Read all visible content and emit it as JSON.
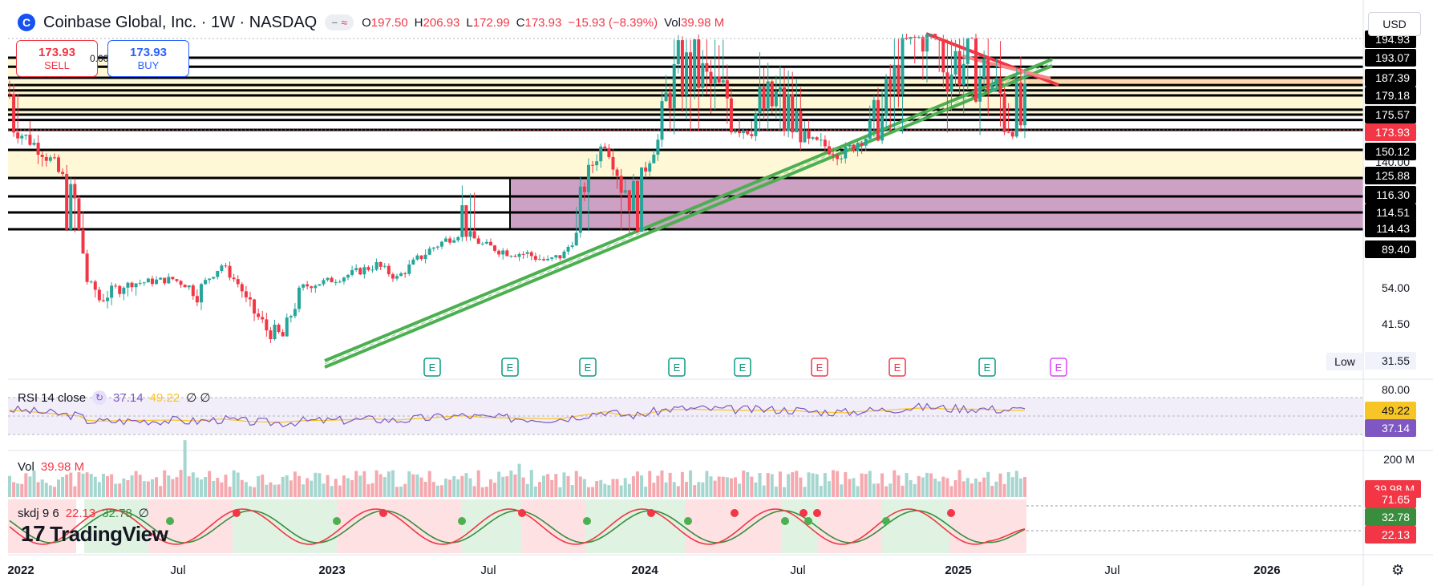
{
  "header": {
    "title": "Coinbase Global, Inc. · 1W · NASDAQ",
    "logo_letter": "C",
    "pill_minus": "−",
    "pill_approx": "≈",
    "open_label": "O",
    "open": "197.50",
    "high_label": "H",
    "high": "206.93",
    "low_label": "L",
    "low": "172.99",
    "close_label": "C",
    "close": "173.93",
    "change": "−15.93 (−8.39%)",
    "vol_label": "Vol",
    "vol": "39.98 M"
  },
  "currency": "USD",
  "trade": {
    "sell_price": "173.93",
    "sell_label": "SELL",
    "buy_price": "173.93",
    "buy_label": "BUY",
    "spread": "0.00"
  },
  "colors": {
    "up": "#26a69a",
    "down": "#f23645",
    "rsi": "#7e57c2",
    "rsi_ma": "#f7c525",
    "trend_green": "#4caf50",
    "trend_red": "#f23645",
    "zone_yellow": "#fff8d6",
    "zone_purple": "#c390b8"
  },
  "rsi_legend": {
    "label": "RSI 14 close",
    "value": "37.14",
    "ma": "49.22",
    "extra": "∅ ∅"
  },
  "vol_legend": {
    "label": "Vol",
    "value": "39.98 M"
  },
  "skdj_legend": {
    "label": "skdj 9 6",
    "k": "22.13",
    "d": "32.78",
    "extra": "∅"
  },
  "brand": {
    "mark": "17",
    "name": "TradingView"
  },
  "low_label": "Low",
  "chart_data": {
    "type": "candlestick",
    "price_axis_labels": [
      "194.93",
      "193.07",
      "187.39",
      "179.18",
      "175.57",
      "173.93",
      "150.12",
      "140.00",
      "125.88",
      "116.30",
      "114.51",
      "114.43",
      "89.40",
      "54.00",
      "41.50",
      "31.55"
    ],
    "last_price": 173.93,
    "x_axis_labels": [
      "2022",
      "Jul",
      "2023",
      "Jul",
      "2024",
      "Jul",
      "2025",
      "Jul",
      "2026"
    ],
    "ohlc_last": {
      "open": 197.5,
      "high": 206.93,
      "low": 172.99,
      "close": 173.93
    },
    "horizontal_levels": [
      193.07,
      187.39,
      179.18,
      175.57,
      173.93,
      150.12,
      125.88,
      116.3,
      114.51,
      114.43
    ],
    "earnings_markers": [
      "E",
      "E",
      "E",
      "E",
      "E",
      "E",
      "E",
      "E",
      "E"
    ],
    "rsi": {
      "axis_labels": [
        "80.00",
        "49.22",
        "37.14"
      ],
      "value": 37.14,
      "ma": 49.22
    },
    "volume": {
      "axis_labels": [
        "200 M",
        "39.98 M"
      ],
      "last": "39.98 M"
    },
    "skdj": {
      "axis_labels": [
        "71.65",
        "32.78",
        "22.13"
      ],
      "k": 22.13,
      "d": 32.78
    }
  }
}
